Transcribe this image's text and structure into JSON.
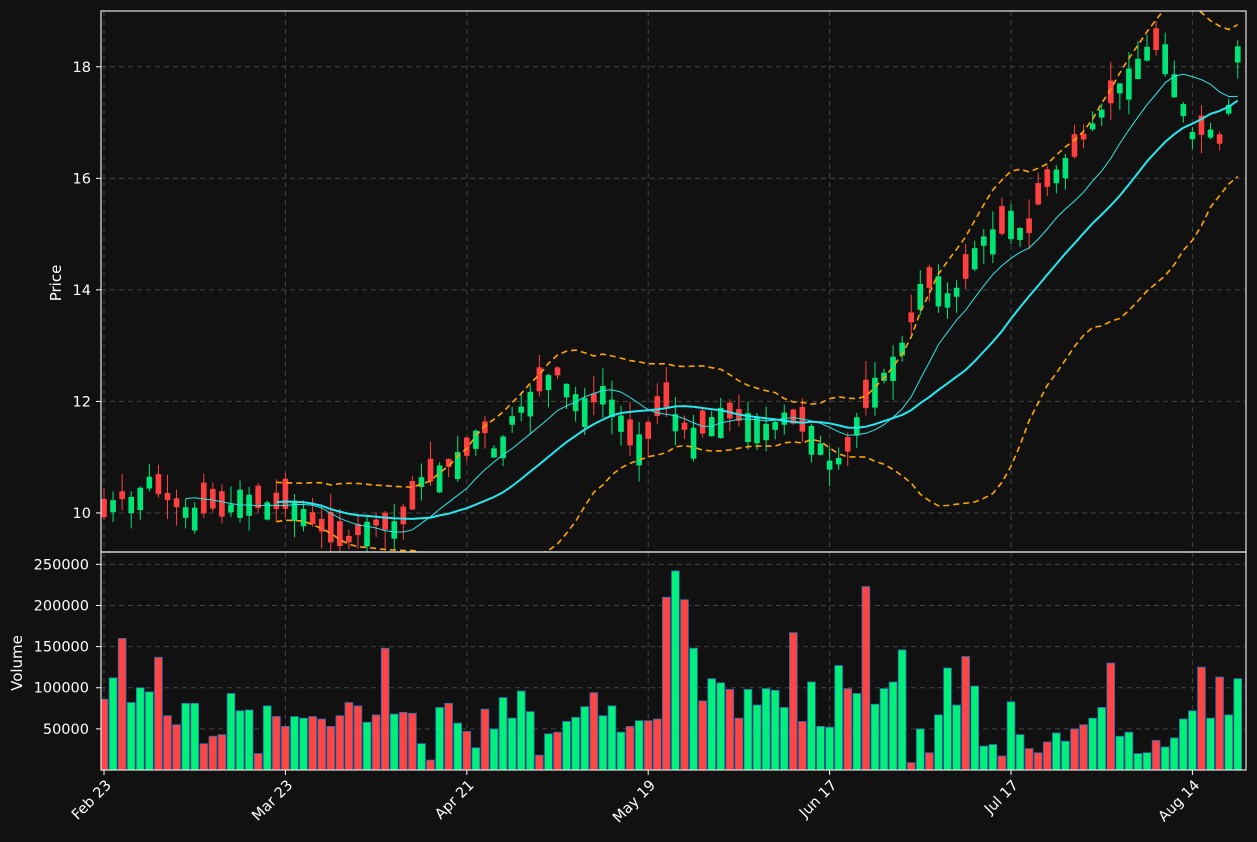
{
  "chart_data": [
    {
      "type": "candlestick",
      "title": "",
      "ylabel": "Price",
      "ylim": [
        9.3,
        19.0
      ],
      "yticks": [
        10,
        12,
        14,
        16,
        18
      ],
      "xticks": [
        {
          "index": 0,
          "label": "Feb 23"
        },
        {
          "index": 20,
          "label": "Mar 23"
        },
        {
          "index": 40,
          "label": "Apr 21"
        },
        {
          "index": 60,
          "label": "May 19"
        },
        {
          "index": 80,
          "label": "Jun 17"
        },
        {
          "index": 100,
          "label": "Jul 17"
        },
        {
          "index": 120,
          "label": "Aug 14"
        }
      ],
      "grid": true,
      "colors": {
        "up": "#00e676",
        "down": "#ff4040",
        "ma_fast": "#2ee6e6",
        "ma_slow": "#26e8f0",
        "bands": "#ffa500"
      },
      "series": [
        {
          "type": "candles",
          "ohlc_anchor_closes": [
            10.0,
            10.3,
            10.2,
            10.6,
            10.3,
            10.1,
            10.0,
            10.2,
            10.0,
            10.3,
            10.2,
            10.1,
            10.2,
            10.05,
            9.8,
            9.6,
            9.45,
            9.7,
            9.8,
            9.75,
            9.9,
            10.6,
            10.7,
            10.9,
            11.1,
            11.6,
            11.0,
            11.7,
            12.0,
            12.35,
            12.5,
            12.1,
            11.9,
            12.2,
            11.8,
            11.2,
            11.4,
            12.1,
            11.6,
            11.4,
            11.6,
            11.8,
            11.7,
            11.65,
            11.5,
            11.75,
            11.6,
            11.4,
            10.9,
            11.0,
            11.8,
            12.3,
            12.6,
            13.1,
            14.0,
            14.2,
            13.8,
            14.3,
            14.9,
            15.0,
            15.3,
            14.9,
            15.8,
            16.1,
            16.4,
            16.8,
            17.2,
            17.6,
            17.9,
            18.3,
            18.45,
            17.6,
            16.8,
            16.9,
            16.6,
            18.3
          ]
        },
        {
          "type": "line",
          "key": "ma_fast"
        },
        {
          "type": "line",
          "key": "ma_slow"
        },
        {
          "type": "band",
          "key": "bollinger_upper"
        },
        {
          "type": "band",
          "key": "bollinger_lower"
        }
      ]
    },
    {
      "type": "bar",
      "ylabel": "Volume",
      "ylim": [
        0,
        265000
      ],
      "yticks": [
        50000,
        100000,
        150000,
        200000,
        250000
      ],
      "ytick_labels": [
        "50000",
        "100000",
        "150000",
        "200000",
        "250000"
      ],
      "values": [
        86000,
        112000,
        160000,
        82000,
        100000,
        95000,
        137000,
        66000,
        55000,
        81000,
        81000,
        32000,
        41000,
        43000,
        93000,
        72000,
        73000,
        20000,
        78000,
        65000,
        53000,
        65000,
        63000,
        65000,
        62000,
        53000,
        66000,
        82000,
        78000,
        58000,
        67000,
        148000,
        68000,
        70000,
        69000,
        32000,
        12000,
        76000,
        81000,
        57000,
        47000,
        27000,
        74000,
        50000,
        88000,
        63000,
        96000,
        71000,
        18000,
        44000,
        46000,
        59000,
        64000,
        77000,
        94000,
        66000,
        78000,
        46000,
        53000,
        60000,
        60000,
        62000,
        210000,
        242000,
        207000,
        148000,
        84000,
        111000,
        106000,
        98000,
        63000,
        98000,
        79000,
        99000,
        97000,
        76000,
        167000,
        59000,
        107000,
        53000,
        52000,
        127000,
        99000,
        93000,
        223000,
        80000,
        99000,
        107000,
        146000,
        9000,
        50000,
        21000,
        67000,
        124000,
        79000,
        138000,
        102000,
        29000,
        31000,
        17000,
        83000,
        43000,
        26000,
        21000,
        34000,
        45000,
        35000,
        50000,
        55000,
        63000,
        76000,
        130000,
        41000,
        46000,
        20000,
        21000,
        36000,
        28000,
        39000,
        62000,
        72000,
        125000,
        63000,
        113000,
        67000,
        111000
      ],
      "directions": [
        "d",
        "u",
        "d",
        "u",
        "u",
        "u",
        "d",
        "d",
        "d",
        "u",
        "u",
        "d",
        "d",
        "d",
        "u",
        "u",
        "u",
        "d",
        "u",
        "d",
        "d",
        "u",
        "u",
        "d",
        "d",
        "d",
        "d",
        "d",
        "d",
        "u",
        "d",
        "d",
        "u",
        "d",
        "d",
        "u",
        "d",
        "u",
        "d",
        "u",
        "d",
        "u",
        "d",
        "u",
        "u",
        "u",
        "u",
        "u",
        "d",
        "u",
        "d",
        "u",
        "u",
        "u",
        "d",
        "u",
        "u",
        "u",
        "d",
        "u",
        "d",
        "d",
        "d",
        "u",
        "d",
        "u",
        "d",
        "u",
        "u",
        "d",
        "d",
        "u",
        "u",
        "u",
        "u",
        "u",
        "d",
        "d",
        "u",
        "u",
        "u",
        "u",
        "d",
        "u",
        "d",
        "u",
        "u",
        "u",
        "u",
        "d",
        "u",
        "d",
        "u",
        "u",
        "u",
        "d",
        "u",
        "u",
        "u",
        "d",
        "u",
        "u",
        "d",
        "d",
        "d",
        "u",
        "u",
        "d",
        "d",
        "u",
        "u",
        "d",
        "u",
        "u",
        "u",
        "u",
        "d",
        "u",
        "u",
        "u",
        "u",
        "d",
        "u",
        "d",
        "u",
        "u"
      ]
    }
  ]
}
